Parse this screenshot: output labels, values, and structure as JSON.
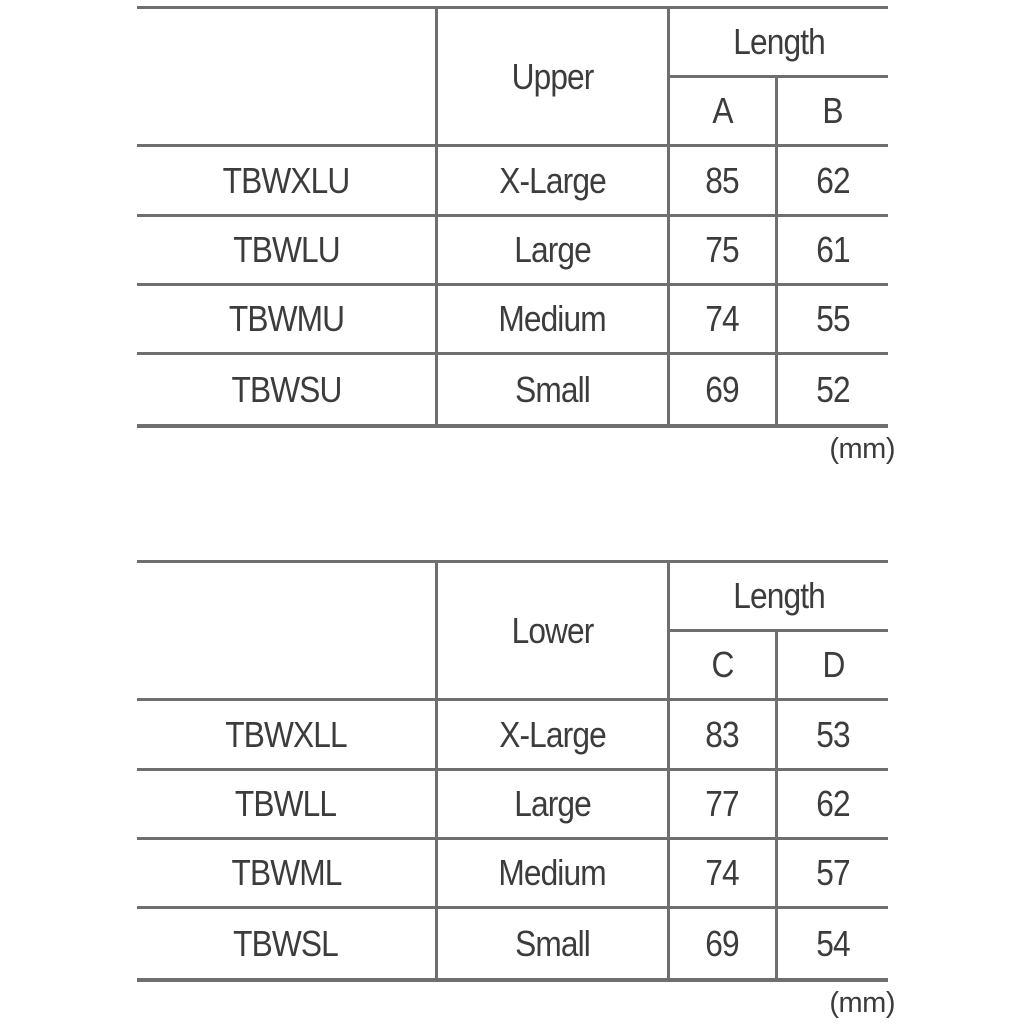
{
  "upper_table": {
    "header": {
      "group_label": "Upper",
      "length_label": "Length",
      "col_a": "A",
      "col_b": "B"
    },
    "rows": [
      {
        "code": "TBWXLU",
        "size": "X-Large",
        "a": "85",
        "b": "62"
      },
      {
        "code": "TBWLU",
        "size": "Large",
        "a": "75",
        "b": "61"
      },
      {
        "code": "TBWMU",
        "size": "Medium",
        "a": "74",
        "b": "55"
      },
      {
        "code": "TBWSU",
        "size": "Small",
        "a": "69",
        "b": "52"
      }
    ],
    "unit_note": "(mm)"
  },
  "lower_table": {
    "header": {
      "group_label": "Lower",
      "length_label": "Length",
      "col_c": "C",
      "col_d": "D"
    },
    "rows": [
      {
        "code": "TBWXLL",
        "size": "X-Large",
        "c": "83",
        "d": "53"
      },
      {
        "code": "TBWLL",
        "size": "Large",
        "c": "77",
        "d": "62"
      },
      {
        "code": "TBWML",
        "size": "Medium",
        "c": "74",
        "d": "57"
      },
      {
        "code": "TBWSL",
        "size": "Small",
        "c": "69",
        "d": "54"
      }
    ],
    "unit_note": "(mm)"
  },
  "colors": {
    "border": "#6f6f6f",
    "text": "#3c3c3c",
    "background": "#ffffff"
  }
}
